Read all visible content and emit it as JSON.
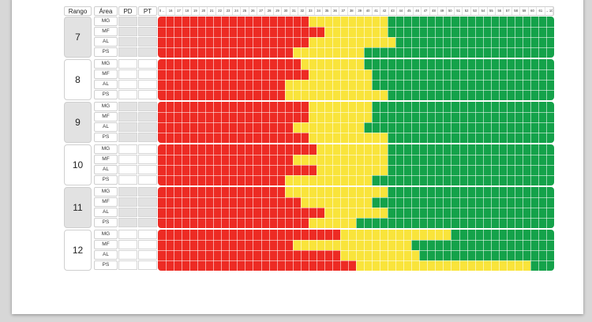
{
  "header": {
    "rango": "Rango",
    "area": "Área",
    "pd": "PD",
    "pt": "PT"
  },
  "scale": {
    "left_arrow": "0 ←",
    "ticks": [
      "16",
      "17",
      "18",
      "19",
      "20",
      "21",
      "22",
      "23",
      "24",
      "25",
      "26",
      "27",
      "28",
      "29",
      "30",
      "31",
      "32",
      "33",
      "34",
      "35",
      "36",
      "37",
      "38",
      "39",
      "40",
      "41",
      "42",
      "43",
      "44",
      "45",
      "46",
      "47",
      "48",
      "49",
      "50",
      "51",
      "52",
      "53",
      "54",
      "55",
      "56",
      "57",
      "58",
      "59",
      "60",
      "61"
    ],
    "right_arrow": "→ 100"
  },
  "colors": {
    "red": "#ed2b24",
    "yellow": "#f9e43b",
    "green": "#14a24a",
    "gray": "#e2e2e2"
  },
  "groups": [
    {
      "rango": "7",
      "shaded": true,
      "rows": [
        {
          "area": "MG",
          "red_end": 19,
          "yellow_end": 29
        },
        {
          "area": "MF",
          "red_end": 21,
          "yellow_end": 29
        },
        {
          "area": "AL",
          "red_end": 19,
          "yellow_end": 30
        },
        {
          "area": "PS",
          "red_end": 17,
          "yellow_end": 26
        }
      ]
    },
    {
      "rango": "8",
      "shaded": false,
      "rows": [
        {
          "area": "MG",
          "red_end": 18,
          "yellow_end": 26
        },
        {
          "area": "MF",
          "red_end": 19,
          "yellow_end": 27
        },
        {
          "area": "AL",
          "red_end": 16,
          "yellow_end": 27
        },
        {
          "area": "PS",
          "red_end": 16,
          "yellow_end": 29
        }
      ]
    },
    {
      "rango": "9",
      "shaded": true,
      "rows": [
        {
          "area": "MG",
          "red_end": 19,
          "yellow_end": 27
        },
        {
          "area": "MF",
          "red_end": 19,
          "yellow_end": 27
        },
        {
          "area": "AL",
          "red_end": 17,
          "yellow_end": 26
        },
        {
          "area": "PS",
          "red_end": 19,
          "yellow_end": 29
        }
      ]
    },
    {
      "rango": "10",
      "shaded": false,
      "rows": [
        {
          "area": "MG",
          "red_end": 20,
          "yellow_end": 29
        },
        {
          "area": "MF",
          "red_end": 17,
          "yellow_end": 29
        },
        {
          "area": "AL",
          "red_end": 20,
          "yellow_end": 29
        },
        {
          "area": "PS",
          "red_end": 16,
          "yellow_end": 27
        }
      ]
    },
    {
      "rango": "11",
      "shaded": true,
      "rows": [
        {
          "area": "MG",
          "red_end": 16,
          "yellow_end": 29
        },
        {
          "area": "MF",
          "red_end": 18,
          "yellow_end": 27
        },
        {
          "area": "AL",
          "red_end": 21,
          "yellow_end": 29
        },
        {
          "area": "PS",
          "red_end": 19,
          "yellow_end": 25
        }
      ]
    },
    {
      "rango": "12",
      "shaded": false,
      "rows": [
        {
          "area": "MG",
          "red_end": 23,
          "yellow_end": 37
        },
        {
          "area": "MF",
          "red_end": 17,
          "yellow_end": 32
        },
        {
          "area": "AL",
          "red_end": 23,
          "yellow_end": 33
        },
        {
          "area": "PS",
          "red_end": 25,
          "yellow_end": 47
        }
      ]
    }
  ]
}
